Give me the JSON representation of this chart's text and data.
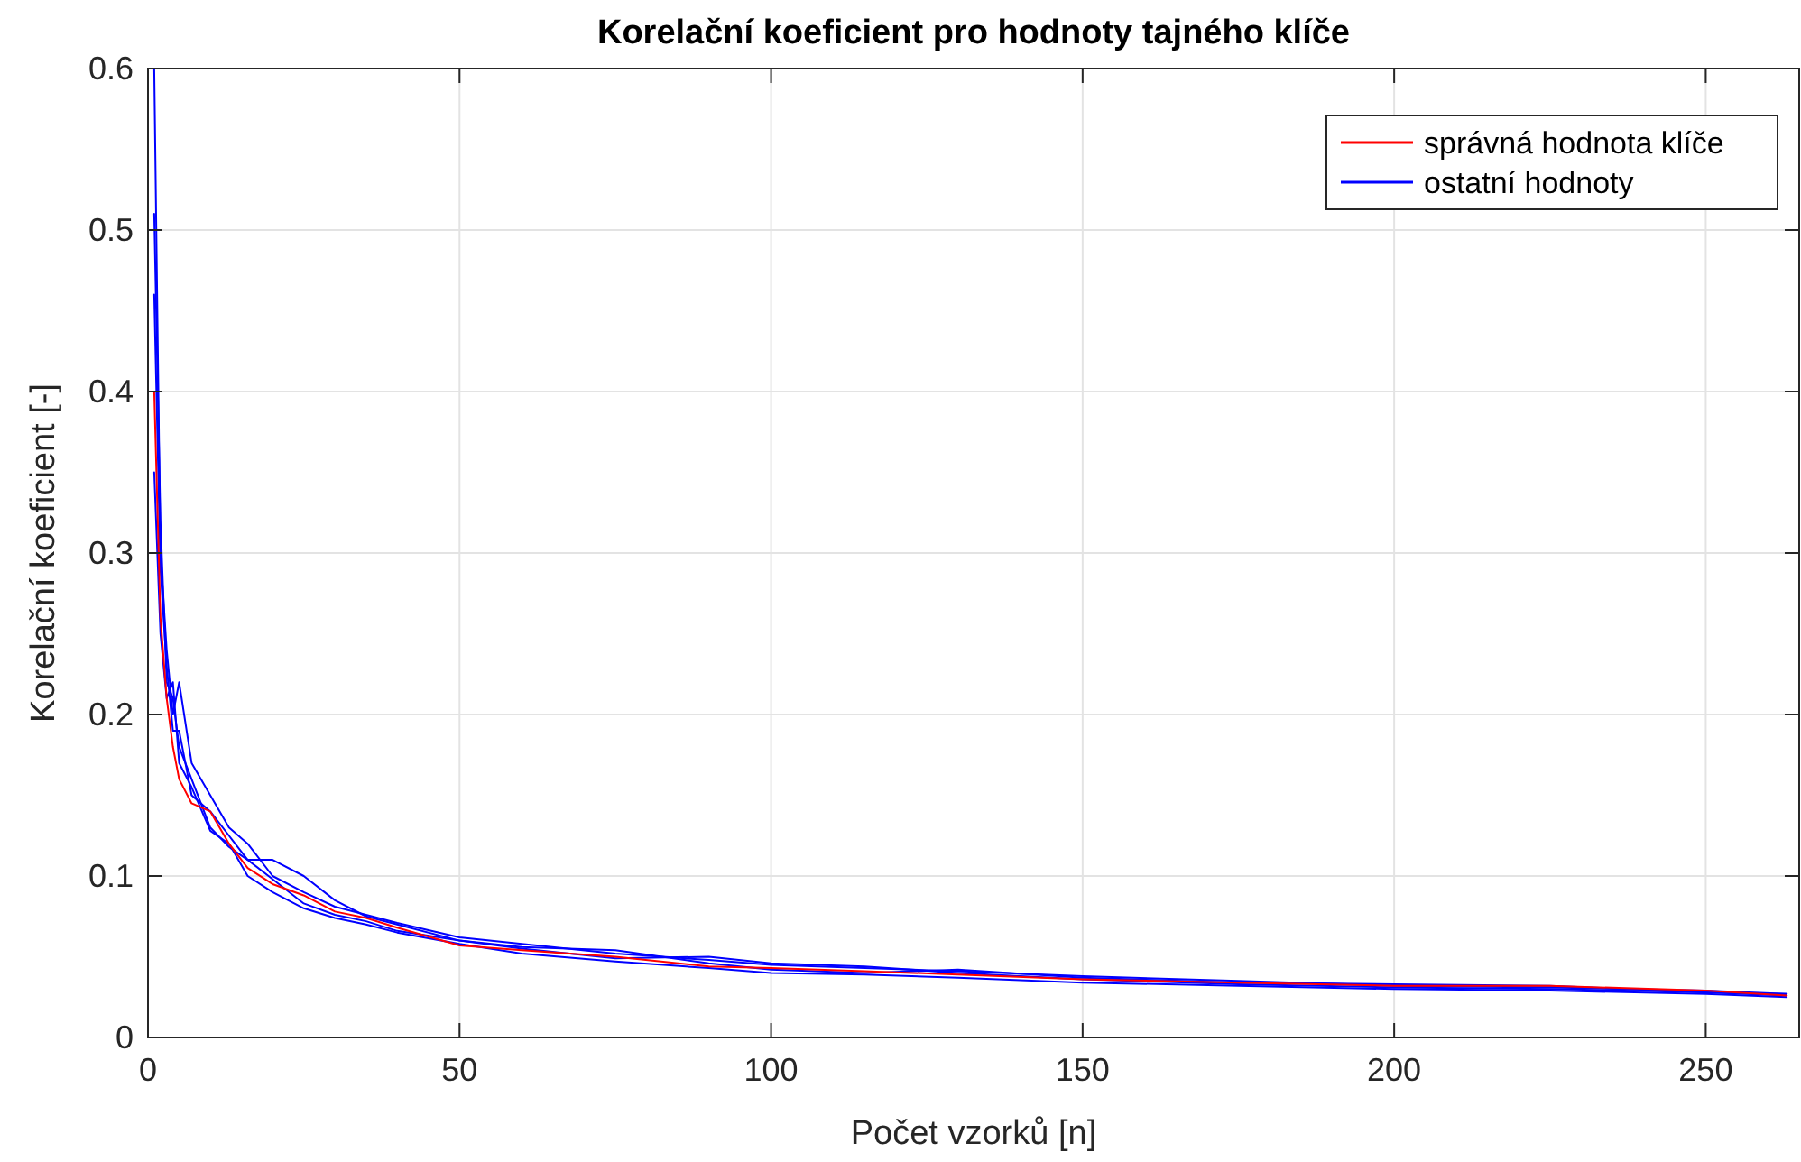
{
  "chart_data": {
    "type": "line",
    "title": "Korelační koeficient pro hodnoty tajného klíče",
    "xlabel": "Počet vzorků [n]",
    "ylabel": "Korelační koeficient [-]",
    "x": [
      1,
      2,
      3,
      4,
      5,
      7,
      10,
      13,
      16,
      20,
      25,
      30,
      35,
      40,
      50,
      60,
      75,
      90,
      100,
      115,
      130,
      150,
      175,
      200,
      225,
      250,
      263
    ],
    "series": [
      {
        "name": "ostatní hodnoty",
        "color": "#0000ff",
        "values": [
          0.6,
          0.3,
          0.24,
          0.2,
          0.22,
          0.17,
          0.15,
          0.13,
          0.12,
          0.1,
          0.09,
          0.081,
          0.076,
          0.071,
          0.062,
          0.058,
          0.052,
          0.048,
          0.045,
          0.043,
          0.041,
          0.038,
          0.035,
          0.032,
          0.031,
          0.029,
          0.027
        ]
      },
      {
        "color": "#0000ff",
        "values": [
          0.51,
          0.32,
          0.22,
          0.21,
          0.18,
          0.16,
          0.13,
          0.118,
          0.11,
          0.11,
          0.1,
          0.085,
          0.075,
          0.07,
          0.06,
          0.055,
          0.049,
          0.05,
          0.046,
          0.044,
          0.04,
          0.036,
          0.033,
          0.031,
          0.03,
          0.028,
          0.026
        ]
      },
      {
        "color": "#0000ff",
        "values": [
          0.46,
          0.29,
          0.23,
          0.19,
          0.19,
          0.15,
          0.14,
          0.125,
          0.11,
          0.098,
          0.083,
          0.076,
          0.072,
          0.066,
          0.06,
          0.056,
          0.054,
          0.046,
          0.042,
          0.04,
          0.042,
          0.037,
          0.034,
          0.033,
          0.032,
          0.028,
          0.027
        ]
      },
      {
        "color": "#0000ff",
        "values": [
          0.35,
          0.25,
          0.21,
          0.22,
          0.17,
          0.155,
          0.128,
          0.12,
          0.1,
          0.09,
          0.08,
          0.074,
          0.07,
          0.065,
          0.058,
          0.052,
          0.047,
          0.043,
          0.04,
          0.039,
          0.037,
          0.034,
          0.032,
          0.03,
          0.029,
          0.027,
          0.025
        ]
      },
      {
        "name": "správná hodnota klíče",
        "color": "#ff0000",
        "values": [
          0.4,
          0.26,
          0.21,
          0.18,
          0.16,
          0.145,
          0.14,
          0.12,
          0.105,
          0.095,
          0.088,
          0.078,
          0.074,
          0.068,
          0.057,
          0.054,
          0.05,
          0.044,
          0.043,
          0.041,
          0.039,
          0.036,
          0.034,
          0.032,
          0.032,
          0.029,
          0.026
        ]
      }
    ],
    "xlim": [
      0,
      265
    ],
    "xticks": [
      0,
      50,
      100,
      150,
      200,
      250
    ],
    "ylim": [
      0,
      0.6
    ],
    "yticks": [
      0,
      0.1,
      0.2,
      0.3,
      0.4,
      0.5,
      0.6
    ],
    "grid": true,
    "legend": "top right",
    "line_style": "solid",
    "marker": "none"
  }
}
